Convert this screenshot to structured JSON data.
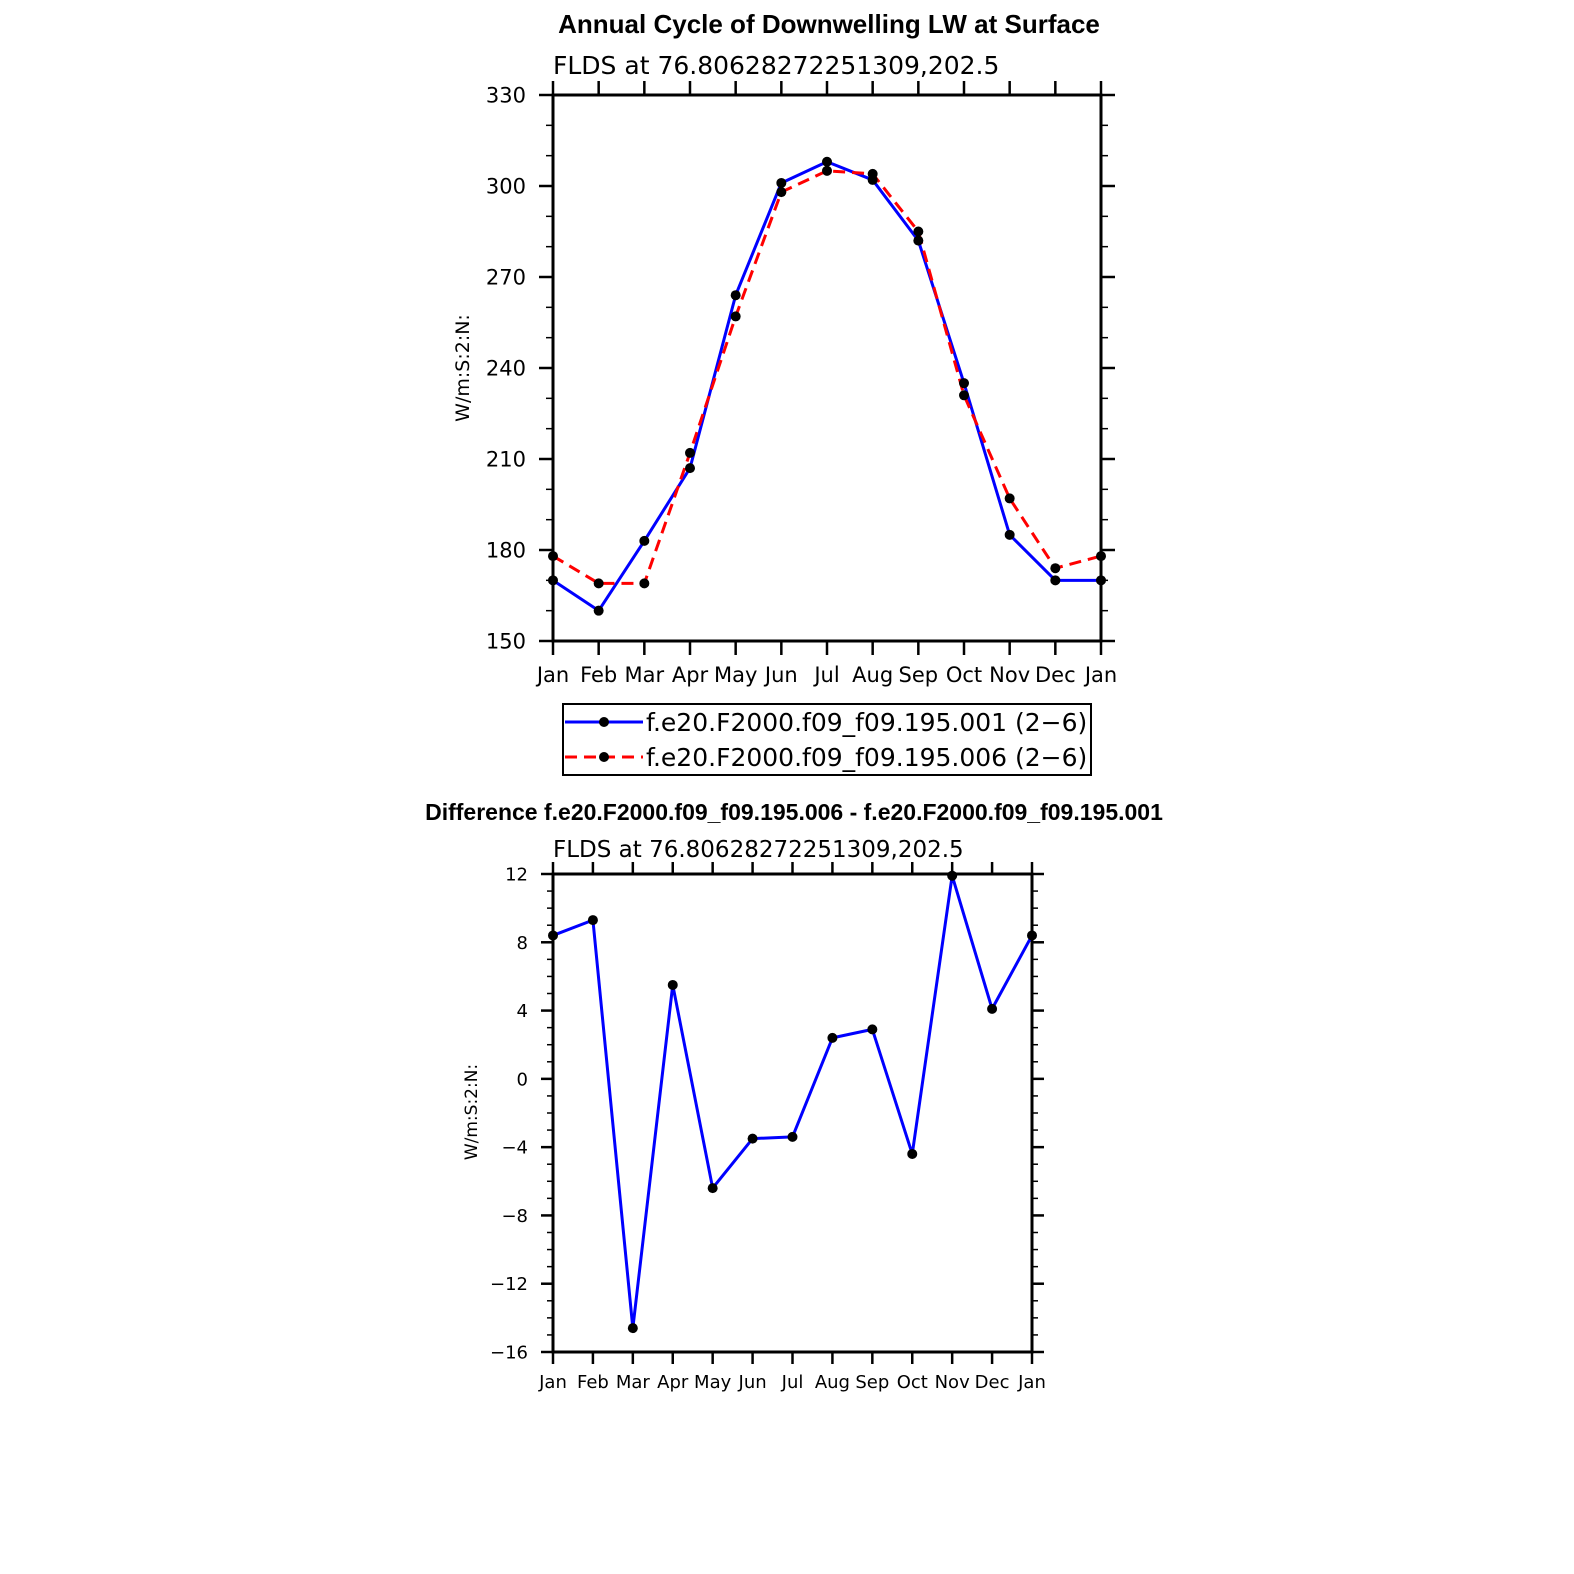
{
  "chart_data": [
    {
      "type": "line",
      "title": "Annual Cycle of Downwelling LW at Surface",
      "subtitle": "FLDS  at  76.80628272251309,202.5",
      "ylabel": "W/m:S:2:N:",
      "xlabel": "",
      "categories": [
        "Jan",
        "Feb",
        "Mar",
        "Apr",
        "May",
        "Jun",
        "Jul",
        "Aug",
        "Sep",
        "Oct",
        "Nov",
        "Dec",
        "Jan"
      ],
      "ylim": [
        150,
        330
      ],
      "yticks": [
        150,
        180,
        210,
        240,
        270,
        300,
        330
      ],
      "grid": false,
      "legend_position": "bottom",
      "series": [
        {
          "name": "f.e20.F2000.f09_f09.195.001 (2−6)",
          "color": "#0000ff",
          "dash": "solid",
          "marker": "dot",
          "values": [
            170,
            160,
            183,
            207,
            264,
            301,
            308,
            302,
            282,
            235,
            185,
            170,
            170
          ]
        },
        {
          "name": "f.e20.F2000.f09_f09.195.006 (2−6)",
          "color": "#ff0000",
          "dash": "dashed",
          "marker": "dot",
          "values": [
            178,
            169,
            169,
            212,
            257,
            298,
            305,
            304,
            285,
            231,
            197,
            174,
            178
          ]
        }
      ]
    },
    {
      "type": "line",
      "title": "Difference f.e20.F2000.f09_f09.195.006 - f.e20.F2000.f09_f09.195.001",
      "subtitle": "FLDS  at  76.80628272251309,202.5",
      "ylabel": "W/m:S:2:N:",
      "xlabel": "",
      "categories": [
        "Jan",
        "Feb",
        "Mar",
        "Apr",
        "May",
        "Jun",
        "Jul",
        "Aug",
        "Sep",
        "Oct",
        "Nov",
        "Dec",
        "Jan"
      ],
      "ylim": [
        -16,
        12
      ],
      "yticks": [
        -16,
        -12,
        -8,
        -4,
        0,
        4,
        8,
        12
      ],
      "grid": false,
      "series": [
        {
          "name": "",
          "color": "#0000ff",
          "dash": "solid",
          "marker": "dot",
          "values": [
            8.4,
            9.3,
            -14.6,
            5.5,
            -6.4,
            -3.5,
            -3.4,
            2.4,
            2.9,
            -4.4,
            11.9,
            4.1,
            8.4
          ]
        }
      ]
    }
  ]
}
